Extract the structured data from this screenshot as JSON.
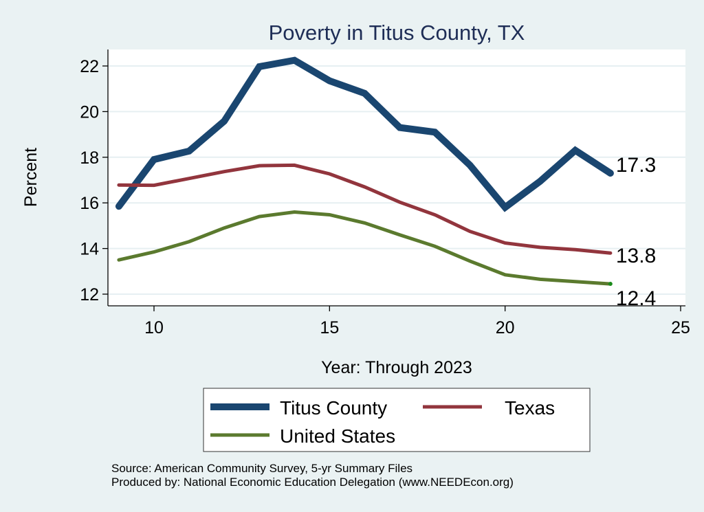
{
  "chart_data": {
    "type": "line",
    "title": "Poverty in Titus County, TX",
    "xlabel": "Year: Through 2023",
    "ylabel": "Percent",
    "xlim": [
      8.7,
      25.15
    ],
    "ylim": [
      11.5,
      22.7
    ],
    "xticks": [
      10,
      15,
      20,
      25
    ],
    "yticks": [
      12,
      14,
      16,
      18,
      20,
      22
    ],
    "grid": true,
    "legend_position": "bottom",
    "x": [
      9,
      10,
      11,
      12,
      13,
      14,
      15,
      16,
      17,
      18,
      19,
      20,
      21,
      22,
      23
    ],
    "series": [
      {
        "name": "Titus County",
        "color": "#1a4670",
        "values": [
          15.85,
          17.9,
          18.27,
          19.58,
          21.97,
          22.25,
          21.35,
          20.8,
          19.3,
          19.1,
          17.65,
          15.8,
          16.95,
          18.3,
          17.3
        ],
        "end_label": "17.3"
      },
      {
        "name": "Texas",
        "color": "#92353d",
        "values": [
          16.78,
          16.77,
          17.07,
          17.37,
          17.63,
          17.65,
          17.27,
          16.7,
          16.03,
          15.48,
          14.75,
          14.24,
          14.05,
          13.95,
          13.8
        ],
        "end_label": "13.8"
      },
      {
        "name": "United States",
        "color": "#5b7a2e",
        "values": [
          13.5,
          13.85,
          14.3,
          14.9,
          15.4,
          15.6,
          15.48,
          15.12,
          14.6,
          14.1,
          13.45,
          12.85,
          12.65,
          12.55,
          12.45
        ],
        "end_label": "12.4"
      }
    ]
  },
  "notes": {
    "source": "Source: American Community Survey, 5-yr Summary Files",
    "produced": "Produced by: National Economic Education Delegation (www.NEEDEcon.org)"
  }
}
